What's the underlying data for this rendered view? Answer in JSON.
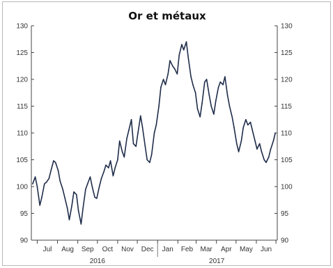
{
  "chart_data": {
    "type": "line",
    "title": "Or et métaux",
    "xlabel": "",
    "ylabel": "",
    "ylim": [
      90,
      130
    ],
    "y_ticks": [
      "90",
      "95",
      "100",
      "105",
      "110",
      "115",
      "120",
      "125",
      "130"
    ],
    "secondary_y_ticks": [
      "90",
      "95",
      "100",
      "105",
      "110",
      "115",
      "120",
      "125",
      "130"
    ],
    "x_ticks": [
      "Jul",
      "Aug",
      "Sep",
      "Oct",
      "Nov",
      "Dec",
      "Jan",
      "Feb",
      "Mar",
      "Apr",
      "May",
      "Jun"
    ],
    "x_group_labels": [
      "2016",
      "2017"
    ],
    "grid": false,
    "legend": "none",
    "line_color": "#1f2d4a",
    "series": [
      {
        "x": [
          "2016-06-24",
          "2016-06-28",
          "2016-07-01",
          "2016-07-05",
          "2016-07-08",
          "2016-07-12",
          "2016-07-15",
          "2016-07-19",
          "2016-07-22",
          "2016-07-26",
          "2016-07-29",
          "2016-08-02",
          "2016-08-05",
          "2016-08-09",
          "2016-08-12",
          "2016-08-16",
          "2016-08-19",
          "2016-08-23",
          "2016-08-26",
          "2016-08-30",
          "2016-09-02",
          "2016-09-06",
          "2016-09-09",
          "2016-09-13",
          "2016-09-16",
          "2016-09-20",
          "2016-09-23",
          "2016-09-27",
          "2016-09-30",
          "2016-10-04",
          "2016-10-07",
          "2016-10-11",
          "2016-10-14",
          "2016-10-18",
          "2016-10-21",
          "2016-10-25",
          "2016-10-28",
          "2016-11-01",
          "2016-11-04",
          "2016-11-08",
          "2016-11-11",
          "2016-11-15",
          "2016-11-18",
          "2016-11-22",
          "2016-11-25",
          "2016-11-29",
          "2016-12-02",
          "2016-12-06",
          "2016-12-09",
          "2016-12-13",
          "2016-12-16",
          "2016-12-20",
          "2016-12-23",
          "2016-12-27",
          "2016-12-30",
          "2017-01-03",
          "2017-01-06",
          "2017-01-10",
          "2017-01-13",
          "2017-01-17",
          "2017-01-20",
          "2017-01-24",
          "2017-01-27",
          "2017-01-31",
          "2017-02-03",
          "2017-02-07",
          "2017-02-10",
          "2017-02-14",
          "2017-02-17",
          "2017-02-21",
          "2017-02-24",
          "2017-02-28",
          "2017-03-03",
          "2017-03-07",
          "2017-03-10",
          "2017-03-14",
          "2017-03-17",
          "2017-03-21",
          "2017-03-24",
          "2017-03-28",
          "2017-03-31",
          "2017-04-04",
          "2017-04-07",
          "2017-04-11",
          "2017-04-14",
          "2017-04-18",
          "2017-04-21",
          "2017-04-25",
          "2017-04-28",
          "2017-05-02",
          "2017-05-05",
          "2017-05-09",
          "2017-05-12",
          "2017-05-16",
          "2017-05-19",
          "2017-05-23",
          "2017-05-26",
          "2017-05-30",
          "2017-06-02",
          "2017-06-06",
          "2017-06-09",
          "2017-06-13",
          "2017-06-16",
          "2017-06-20",
          "2017-06-23",
          "2017-06-27",
          "2017-06-30"
        ],
        "values": [
          100.5,
          101.8,
          100.0,
          96.5,
          98.0,
          100.5,
          100.8,
          101.5,
          103.0,
          104.8,
          104.5,
          103.0,
          101.0,
          99.5,
          98.0,
          96.0,
          93.8,
          96.5,
          99.0,
          98.5,
          95.5,
          93.0,
          96.0,
          99.5,
          100.5,
          101.8,
          100.0,
          98.0,
          97.8,
          100.0,
          101.5,
          102.8,
          104.0,
          103.5,
          104.8,
          102.0,
          103.5,
          105.0,
          108.5,
          106.5,
          105.5,
          109.0,
          110.5,
          112.5,
          108.0,
          107.5,
          110.0,
          113.2,
          111.0,
          107.5,
          105.0,
          104.5,
          106.0,
          110.0,
          111.5,
          115.0,
          118.5,
          120.0,
          119.0,
          121.0,
          123.5,
          122.5,
          122.0,
          121.0,
          124.5,
          126.5,
          125.5,
          127.0,
          124.0,
          120.5,
          119.0,
          117.5,
          114.5,
          113.0,
          115.5,
          119.5,
          120.0,
          117.0,
          115.0,
          113.5,
          116.0,
          118.5,
          119.5,
          119.0,
          120.5,
          117.0,
          115.0,
          113.0,
          111.0,
          108.0,
          106.5,
          108.5,
          111.0,
          112.5,
          111.5,
          112.0,
          110.5,
          108.5,
          107.0,
          108.0,
          106.5,
          105.0,
          104.5,
          105.5,
          107.0,
          108.5,
          110.0
        ]
      }
    ]
  }
}
